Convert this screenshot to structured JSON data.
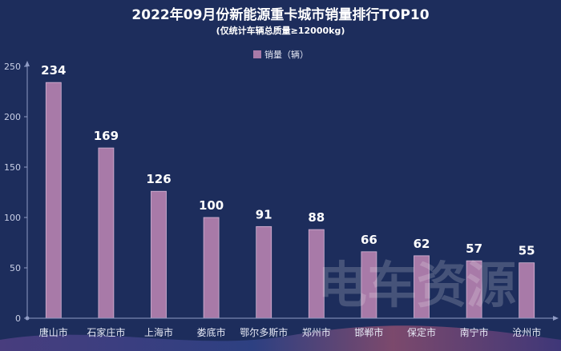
{
  "chart_data": {
    "type": "bar",
    "title": "2022年09月份新能源重卡城市销量排行TOP10",
    "subtitle": "(仅统计车辆总质量≥12000kg)",
    "categories": [
      "唐山市",
      "石家庄市",
      "上海市",
      "娄底市",
      "鄂尔多斯市",
      "郑州市",
      "邯郸市",
      "保定市",
      "南宁市",
      "沧州市"
    ],
    "series": [
      {
        "name": "销量（辆）",
        "values": [
          234,
          169,
          126,
          100,
          91,
          88,
          66,
          62,
          57,
          55
        ]
      }
    ],
    "y_ticks": [
      0,
      50,
      100,
      150,
      200,
      250
    ],
    "ylim": [
      0,
      250
    ],
    "grid": false,
    "legend_position": "top-center",
    "colors": {
      "bar": "#a87aa8",
      "background": "#1d2d5c"
    }
  },
  "watermark": "电车资源"
}
